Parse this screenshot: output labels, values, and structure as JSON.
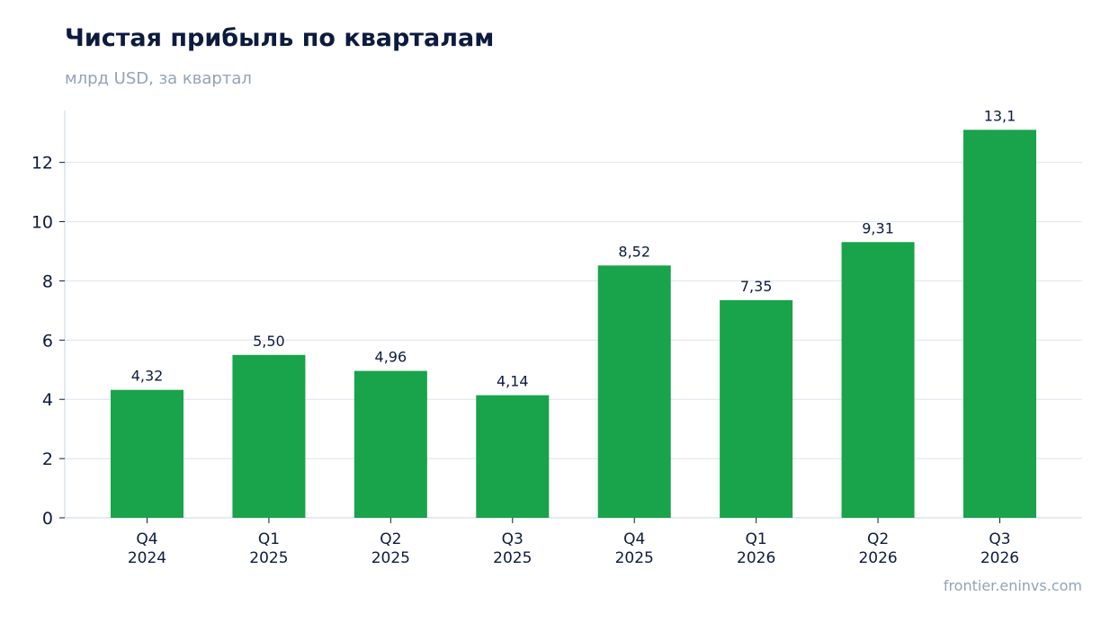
{
  "header": {
    "title": "Чистая прибыль по кварталам",
    "subtitle": "млрд USD, за квартал"
  },
  "footer": {
    "source": "frontier.eninvs.com"
  },
  "colors": {
    "bar": "#19a34a",
    "title": "#0d1b3e",
    "muted": "#94a3b8",
    "grid": "#e2e8f0",
    "axis": "#cbd5e1",
    "tick_text": "#0d1b3e"
  },
  "chart_data": {
    "type": "bar",
    "title": "Чистая прибыль по кварталам",
    "subtitle": "млрд USD, за квартал",
    "categories": [
      [
        "Q4",
        "2024"
      ],
      [
        "Q1",
        "2025"
      ],
      [
        "Q2",
        "2025"
      ],
      [
        "Q3",
        "2025"
      ],
      [
        "Q4",
        "2025"
      ],
      [
        "Q1",
        "2026"
      ],
      [
        "Q2",
        "2026"
      ],
      [
        "Q3",
        "2026"
      ]
    ],
    "values": [
      4.32,
      5.5,
      4.96,
      4.14,
      8.52,
      7.35,
      9.31,
      13.1
    ],
    "data_labels": [
      "4,32",
      "5,50",
      "4,96",
      "4,14",
      "8,52",
      "7,35",
      "9,31",
      "13,1"
    ],
    "y_ticks": [
      0,
      2,
      4,
      6,
      8,
      10,
      12
    ],
    "ylim": [
      0,
      13.75
    ],
    "grid": true,
    "legend": false,
    "xlabel": "",
    "ylabel": ""
  }
}
